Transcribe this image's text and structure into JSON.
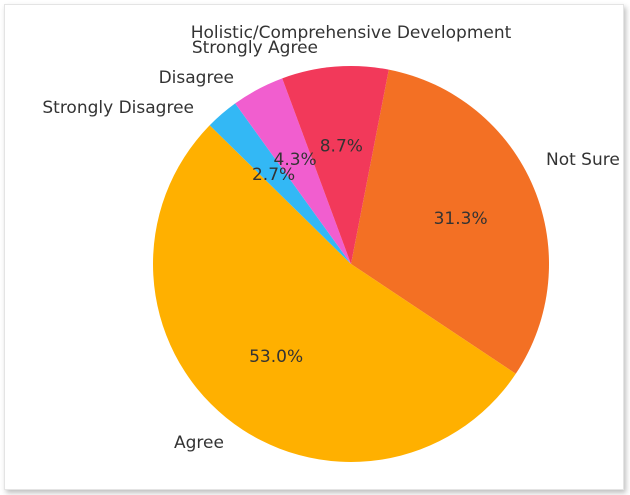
{
  "chart_data": {
    "type": "pie",
    "title": "Holistic/Comprehensive Development",
    "slices": [
      {
        "label": "Not Sure",
        "value": 31.3,
        "pct_text": "31.3%",
        "color": "#f37024"
      },
      {
        "label": "Agree",
        "value": 53.0,
        "pct_text": "53.0%",
        "color": "#ffb000"
      },
      {
        "label": "Strongly Disagree",
        "value": 2.7,
        "pct_text": "2.7%",
        "color": "#33b8f5"
      },
      {
        "label": "Disagree",
        "value": 4.3,
        "pct_text": "4.3%",
        "color": "#f15ecf"
      },
      {
        "label": "Strongly Agree",
        "value": 8.7,
        "pct_text": "8.7%",
        "color": "#f2395a"
      }
    ],
    "start_angle_deg": 79,
    "direction": "clockwise",
    "legend": "none"
  }
}
